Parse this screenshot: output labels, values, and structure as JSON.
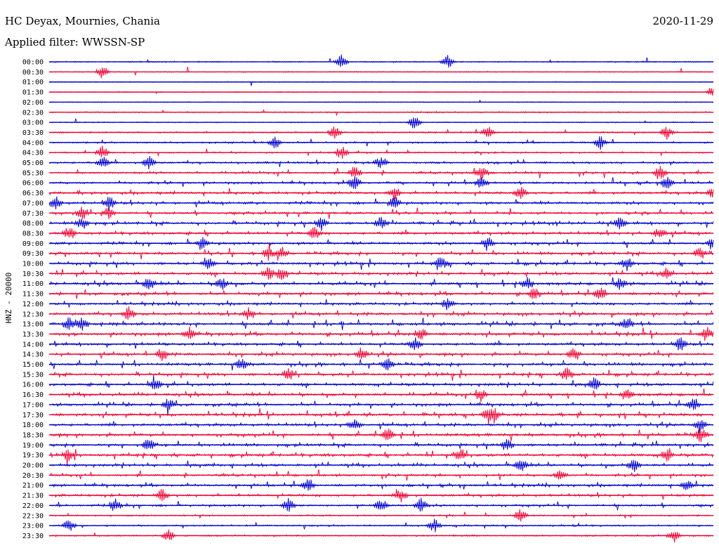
{
  "header": {
    "station": "HC Deyax, Mournies, Chania",
    "date": "2020-11-29",
    "filter": "Applied filter: WWSSN-SP"
  },
  "chart_data": {
    "type": "line",
    "title": "HC Deyax, Mournies, Chania",
    "ylabel": "HNZ - 20000",
    "colors": [
      "#0000cc",
      "#ee0033"
    ],
    "rows": [
      {
        "label": "00:00",
        "activity": 0.15,
        "events": [
          0.44,
          0.6
        ]
      },
      {
        "label": "00:30",
        "activity": 0.05,
        "events": [
          0.08
        ]
      },
      {
        "label": "01:00",
        "activity": 0.05,
        "events": []
      },
      {
        "label": "01:30",
        "activity": 0.05,
        "events": [
          1.0
        ]
      },
      {
        "label": "02:00",
        "activity": 0.03,
        "events": []
      },
      {
        "label": "02:30",
        "activity": 0.15,
        "events": []
      },
      {
        "label": "03:00",
        "activity": 0.08,
        "events": [
          0.55
        ]
      },
      {
        "label": "03:30",
        "activity": 0.2,
        "events": [
          0.43,
          0.66,
          0.93
        ]
      },
      {
        "label": "04:00",
        "activity": 0.25,
        "events": [
          0.34,
          0.83
        ]
      },
      {
        "label": "04:30",
        "activity": 0.25,
        "events": [
          0.08,
          0.44
        ]
      },
      {
        "label": "05:00",
        "activity": 0.4,
        "events": [
          0.08,
          0.15,
          0.5
        ]
      },
      {
        "label": "05:30",
        "activity": 0.45,
        "events": [
          0.46,
          0.65,
          0.92
        ]
      },
      {
        "label": "06:00",
        "activity": 0.45,
        "events": [
          0.46,
          0.65,
          0.93
        ]
      },
      {
        "label": "06:30",
        "activity": 0.55,
        "events": [
          0.52,
          0.71,
          1.0
        ]
      },
      {
        "label": "07:00",
        "activity": 0.6,
        "events": [
          0.01,
          0.09,
          0.52
        ]
      },
      {
        "label": "07:30",
        "activity": 0.55,
        "events": [
          0.05,
          0.09
        ]
      },
      {
        "label": "08:00",
        "activity": 0.6,
        "events": [
          0.05,
          0.41,
          0.5,
          0.86
        ]
      },
      {
        "label": "08:30",
        "activity": 0.6,
        "events": [
          0.03,
          0.4,
          0.92
        ]
      },
      {
        "label": "09:00",
        "activity": 0.6,
        "events": [
          0.23,
          0.66,
          1.0
        ]
      },
      {
        "label": "09:30",
        "activity": 0.6,
        "events": [
          0.33,
          0.35,
          0.98
        ]
      },
      {
        "label": "10:00",
        "activity": 0.65,
        "events": [
          0.24,
          0.59,
          0.87
        ]
      },
      {
        "label": "10:30",
        "activity": 0.65,
        "events": [
          0.33,
          0.35,
          0.93
        ]
      },
      {
        "label": "11:00",
        "activity": 0.7,
        "events": [
          0.15,
          0.26,
          0.72,
          0.86
        ]
      },
      {
        "label": "11:30",
        "activity": 0.65,
        "events": [
          0.73,
          0.83
        ]
      },
      {
        "label": "12:00",
        "activity": 0.55,
        "events": [
          0.6
        ]
      },
      {
        "label": "12:30",
        "activity": 0.65,
        "events": [
          0.12,
          0.3
        ]
      },
      {
        "label": "13:00",
        "activity": 0.75,
        "events": [
          0.03,
          0.05,
          0.87
        ]
      },
      {
        "label": "13:30",
        "activity": 0.7,
        "events": [
          0.21,
          0.56,
          0.99
        ]
      },
      {
        "label": "14:00",
        "activity": 0.6,
        "events": [
          0.55,
          0.95
        ]
      },
      {
        "label": "14:30",
        "activity": 0.65,
        "events": [
          0.17,
          0.47,
          0.79
        ]
      },
      {
        "label": "15:00",
        "activity": 0.65,
        "events": [
          0.29,
          0.51
        ]
      },
      {
        "label": "15:30",
        "activity": 0.65,
        "events": [
          0.36,
          0.78
        ]
      },
      {
        "label": "16:00",
        "activity": 0.65,
        "events": [
          0.16,
          0.82
        ]
      },
      {
        "label": "16:30",
        "activity": 0.7,
        "events": [
          0.65,
          0.87
        ]
      },
      {
        "label": "17:00",
        "activity": 0.65,
        "events": [
          0.18,
          0.97
        ]
      },
      {
        "label": "17:30",
        "activity": 0.7,
        "events": [
          0.66,
          0.67
        ]
      },
      {
        "label": "18:00",
        "activity": 0.65,
        "events": [
          0.46,
          0.98
        ]
      },
      {
        "label": "18:30",
        "activity": 0.7,
        "events": [
          0.51,
          0.98
        ]
      },
      {
        "label": "19:00",
        "activity": 0.6,
        "events": [
          0.15,
          0.69
        ]
      },
      {
        "label": "19:30",
        "activity": 0.7,
        "events": [
          0.03,
          0.62,
          0.93
        ]
      },
      {
        "label": "20:00",
        "activity": 0.65,
        "events": [
          0.71,
          0.88
        ]
      },
      {
        "label": "20:30",
        "activity": 0.55,
        "events": [
          0.77
        ]
      },
      {
        "label": "21:00",
        "activity": 0.55,
        "events": [
          0.39,
          0.96
        ]
      },
      {
        "label": "21:30",
        "activity": 0.55,
        "events": [
          0.17,
          0.53
        ]
      },
      {
        "label": "22:00",
        "activity": 0.5,
        "events": [
          0.1,
          0.36,
          0.5,
          0.56
        ]
      },
      {
        "label": "22:30",
        "activity": 0.2,
        "events": [
          0.71
        ]
      },
      {
        "label": "23:00",
        "activity": 0.25,
        "events": [
          0.03,
          0.58
        ]
      },
      {
        "label": "23:30",
        "activity": 0.2,
        "events": [
          0.18,
          0.94
        ]
      }
    ]
  }
}
